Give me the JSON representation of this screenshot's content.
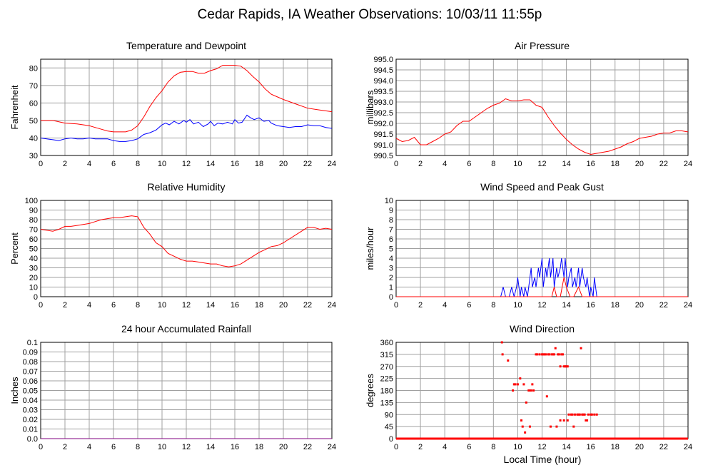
{
  "title": "Cedar Rapids, IA Weather Observations: 10/03/11 11:55p",
  "xlabel_bottom": "Local Time (hour)",
  "colors": {
    "red": "#ff0000",
    "blue": "#0000ff",
    "grid": "#a0a0a0",
    "purple": "#800080"
  },
  "chart_data": [
    {
      "id": "temp",
      "type": "line",
      "title": "Temperature and Dewpoint",
      "ylabel": "Fahrenheit",
      "xlim": [
        0,
        24
      ],
      "ylim": [
        30,
        85
      ],
      "yticks": [
        30,
        40,
        50,
        60,
        70,
        80
      ],
      "xticks": [
        0,
        2,
        4,
        6,
        8,
        10,
        12,
        14,
        16,
        18,
        20,
        22,
        24
      ],
      "series": [
        {
          "color": "#ff0000",
          "x": [
            0,
            1,
            2,
            3,
            4,
            5,
            5.5,
            6,
            6.5,
            7,
            7.5,
            8,
            8.5,
            9,
            9.5,
            10,
            10.5,
            11,
            11.5,
            12,
            12.5,
            13,
            13.5,
            14,
            14.5,
            15,
            15.5,
            16,
            16.5,
            17,
            17.5,
            18,
            18.5,
            19,
            20,
            21,
            22,
            23,
            24
          ],
          "y": [
            50,
            50,
            48.5,
            48,
            47,
            45,
            44,
            43.5,
            43.5,
            43.5,
            44.5,
            47,
            52,
            58,
            63,
            67,
            72,
            75.5,
            77.5,
            78,
            78,
            77,
            77,
            78.5,
            79.5,
            81.5,
            81.5,
            81.5,
            81,
            78.5,
            75,
            72,
            68,
            65,
            62,
            59.5,
            57,
            56,
            55
          ]
        },
        {
          "color": "#0000ff",
          "x": [
            0,
            0.5,
            1,
            1.5,
            2,
            2.5,
            3,
            3.5,
            4,
            4.5,
            5,
            5.5,
            6,
            6.5,
            7,
            7.5,
            8,
            8.5,
            9,
            9.5,
            10,
            10.3,
            10.6,
            11,
            11.4,
            11.8,
            12,
            12.3,
            12.6,
            13,
            13.4,
            13.8,
            14,
            14.3,
            14.6,
            15,
            15.4,
            15.8,
            16,
            16.3,
            16.6,
            17,
            17.3,
            17.6,
            18,
            18.4,
            18.8,
            19,
            19.5,
            20,
            20.5,
            21,
            21.5,
            22,
            22.5,
            23,
            23.5,
            24
          ],
          "y": [
            40,
            39.5,
            39,
            38.5,
            39.5,
            40,
            39.5,
            39.5,
            40,
            39.5,
            39.5,
            39.5,
            38.5,
            38,
            38,
            38.5,
            39.5,
            42,
            43,
            44.5,
            47.5,
            48.5,
            47.5,
            49.5,
            48,
            50,
            49,
            50.5,
            48,
            49,
            46.5,
            48,
            49.5,
            47,
            48.5,
            48,
            49,
            48,
            50.5,
            48.5,
            49,
            53,
            51.5,
            50.5,
            51.5,
            49.5,
            50,
            48.5,
            47,
            46.5,
            46,
            46.5,
            46.5,
            47.5,
            47,
            47,
            46,
            45.5
          ]
        }
      ]
    },
    {
      "id": "pressure",
      "type": "line",
      "title": "Air Pressure",
      "ylabel": "millibars",
      "xlim": [
        0,
        24
      ],
      "ylim": [
        990.5,
        995.0
      ],
      "yticks": [
        "990.5",
        "991.0",
        "991.5",
        "992.0",
        "992.5",
        "993.0",
        "993.5",
        "994.0",
        "994.5",
        "995.0"
      ],
      "xticks": [
        0,
        2,
        4,
        6,
        8,
        10,
        12,
        14,
        16,
        18,
        20,
        22,
        24
      ],
      "series": [
        {
          "color": "#ff0000",
          "x": [
            0,
            0.5,
            1,
            1.5,
            2,
            2.5,
            3,
            3.5,
            4,
            4.5,
            5,
            5.5,
            6,
            6.5,
            7,
            7.5,
            8,
            8.5,
            9,
            9.5,
            10,
            10.5,
            11,
            11.5,
            12,
            12.5,
            13,
            13.5,
            14,
            14.5,
            15,
            15.5,
            16,
            16.5,
            17,
            17.5,
            18,
            18.5,
            19,
            19.5,
            20,
            20.5,
            21,
            21.5,
            22,
            22.5,
            23,
            23.5,
            24
          ],
          "y": [
            991.3,
            991.15,
            991.2,
            991.35,
            991.0,
            991.0,
            991.15,
            991.3,
            991.5,
            991.6,
            991.9,
            992.1,
            992.1,
            992.3,
            992.5,
            992.7,
            992.85,
            992.95,
            993.15,
            993.05,
            993.05,
            993.1,
            993.1,
            992.85,
            992.75,
            992.3,
            991.9,
            991.55,
            991.25,
            991.0,
            990.8,
            990.65,
            990.55,
            990.6,
            990.65,
            990.7,
            990.8,
            990.9,
            991.05,
            991.15,
            991.3,
            991.35,
            991.4,
            991.5,
            991.55,
            991.55,
            991.65,
            991.65,
            991.6
          ]
        }
      ]
    },
    {
      "id": "rh",
      "type": "line",
      "title": "Relative Humidity",
      "ylabel": "Percent",
      "xlim": [
        0,
        24
      ],
      "ylim": [
        0,
        100
      ],
      "yticks": [
        0,
        10,
        20,
        30,
        40,
        50,
        60,
        70,
        80,
        90,
        100
      ],
      "xticks": [
        0,
        2,
        4,
        6,
        8,
        10,
        12,
        14,
        16,
        18,
        20,
        22,
        24
      ],
      "series": [
        {
          "color": "#ff0000",
          "x": [
            0,
            0.5,
            1,
            1.5,
            2,
            2.5,
            3,
            3.5,
            4,
            4.5,
            5,
            5.5,
            6,
            6.5,
            7,
            7.5,
            8,
            8.5,
            9,
            9.5,
            10,
            10.5,
            11,
            11.5,
            12,
            12.5,
            13,
            13.5,
            14,
            14.5,
            15,
            15.5,
            16,
            16.5,
            17,
            17.5,
            18,
            18.5,
            19,
            19.5,
            20,
            20.5,
            21,
            21.5,
            22,
            22.5,
            23,
            23.5,
            24
          ],
          "y": [
            70,
            69,
            68,
            70,
            73,
            73,
            74,
            75,
            76,
            78,
            80,
            81,
            82,
            82,
            83,
            84,
            83,
            72,
            65,
            56,
            52,
            45,
            42,
            39,
            37,
            37,
            36,
            35,
            34,
            34,
            32,
            31,
            32,
            34,
            38,
            42,
            46,
            49,
            52,
            53,
            56,
            60,
            64,
            68,
            72,
            72,
            70,
            71,
            70
          ]
        }
      ]
    },
    {
      "id": "wind",
      "type": "line",
      "title": "Wind Speed and Peak Gust",
      "ylabel": "miles/hour",
      "xlim": [
        0,
        24
      ],
      "ylim": [
        0,
        10
      ],
      "yticks": [
        0,
        1,
        2,
        3,
        4,
        5,
        6,
        7,
        8,
        9,
        10
      ],
      "xticks": [
        0,
        2,
        4,
        6,
        8,
        10,
        12,
        14,
        16,
        18,
        20,
        22,
        24
      ],
      "series": [
        {
          "color": "#0000ff",
          "x": [
            0,
            8.6,
            8.8,
            9.0,
            9.3,
            9.5,
            9.7,
            9.9,
            10.0,
            10.2,
            10.3,
            10.5,
            10.6,
            10.8,
            10.9,
            11.1,
            11.2,
            11.4,
            11.5,
            11.7,
            11.8,
            12.0,
            12.1,
            12.3,
            12.4,
            12.6,
            12.7,
            12.9,
            13.0,
            13.2,
            13.3,
            13.5,
            13.6,
            13.8,
            13.9,
            14.1,
            14.2,
            14.4,
            14.5,
            14.7,
            14.8,
            15.0,
            15.1,
            15.3,
            15.4,
            15.6,
            15.7,
            15.9,
            16.0,
            16.2,
            16.3,
            16.5,
            24
          ],
          "y": [
            0,
            0,
            1,
            0,
            0,
            1,
            0,
            1,
            2,
            0,
            1,
            0,
            1,
            0,
            1,
            3,
            1,
            2,
            1,
            3,
            2,
            4,
            1,
            3,
            2,
            4,
            2,
            4,
            1,
            3,
            2,
            3,
            4,
            2,
            4,
            1,
            2,
            3,
            1,
            2,
            1,
            3,
            1,
            3,
            2,
            1,
            2,
            0,
            1,
            0,
            2,
            0,
            0
          ]
        },
        {
          "color": "#ff0000",
          "x": [
            0,
            12.8,
            13.0,
            13.2,
            13.5,
            13.8,
            14.0,
            14.3,
            14.6,
            15.0,
            15.3,
            15.6,
            24
          ],
          "y": [
            0,
            0,
            1,
            0,
            0,
            2,
            1,
            0,
            0,
            1,
            0,
            0,
            0
          ]
        }
      ]
    },
    {
      "id": "rain",
      "type": "line",
      "title": "24 hour Accumulated Rainfall",
      "ylabel": "Inches",
      "xlim": [
        0,
        24
      ],
      "ylim": [
        0,
        0.1
      ],
      "yticks": [
        "0.0",
        "0.01",
        "0.02",
        "0.03",
        "0.04",
        "0.05",
        "0.06",
        "0.07",
        "0.08",
        "0.09",
        "0.1"
      ],
      "xticks": [
        0,
        2,
        4,
        6,
        8,
        10,
        12,
        14,
        16,
        18,
        20,
        22,
        24
      ],
      "series": [
        {
          "color": "#800080",
          "x": [
            0,
            24
          ],
          "y": [
            0,
            0
          ]
        }
      ]
    },
    {
      "id": "winddir",
      "type": "scatter",
      "title": "Wind Direction",
      "ylabel": "degrees",
      "xlabel": "Local Time (hour)",
      "xlim": [
        0,
        24
      ],
      "ylim": [
        0,
        360
      ],
      "yticks": [
        0,
        45,
        90,
        135,
        180,
        225,
        270,
        315,
        360
      ],
      "xticks": [
        0,
        2,
        4,
        6,
        8,
        10,
        12,
        14,
        16,
        18,
        20,
        22,
        24
      ],
      "baseline": {
        "color": "#ff0000",
        "x": [
          0,
          24
        ],
        "y": [
          0,
          0
        ]
      },
      "points": {
        "color": "#ff0000",
        "x": [
          8.7,
          8.75,
          9.2,
          9.6,
          9.7,
          9.8,
          10.0,
          10.2,
          10.5,
          10.7,
          10.9,
          11.0,
          11.1,
          11.2,
          11.3,
          11.5,
          11.6,
          11.8,
          12.0,
          12.1,
          12.2,
          12.3,
          12.5,
          12.6,
          12.8,
          12.9,
          13.0,
          13.1,
          13.3,
          13.4,
          13.5,
          13.6,
          13.7,
          13.8,
          13.9,
          14.0,
          14.1,
          14.2,
          14.4,
          14.5,
          14.7,
          14.9,
          15.0,
          15.1,
          15.3,
          15.4,
          15.5,
          15.6,
          15.7,
          15.8,
          16.0,
          16.1,
          16.3,
          16.5,
          12.4,
          12.7,
          13.2,
          13.5,
          13.8,
          14.1,
          14.6,
          15.2,
          10.5,
          10.6,
          10.4,
          10.3,
          11.0,
          11.2
        ],
        "y": [
          360,
          315,
          292,
          180,
          203,
          203,
          203,
          225,
          203,
          135,
          180,
          180,
          180,
          203,
          180,
          315,
          315,
          315,
          315,
          315,
          315,
          315,
          315,
          315,
          315,
          315,
          315,
          338,
          315,
          315,
          270,
          315,
          315,
          270,
          270,
          270,
          270,
          90,
          90,
          90,
          90,
          90,
          90,
          90,
          90,
          90,
          90,
          68,
          68,
          90,
          90,
          90,
          90,
          90,
          158,
          45,
          45,
          68,
          68,
          68,
          45,
          338,
          0,
          23,
          45,
          68,
          45,
          0
        ]
      }
    }
  ]
}
